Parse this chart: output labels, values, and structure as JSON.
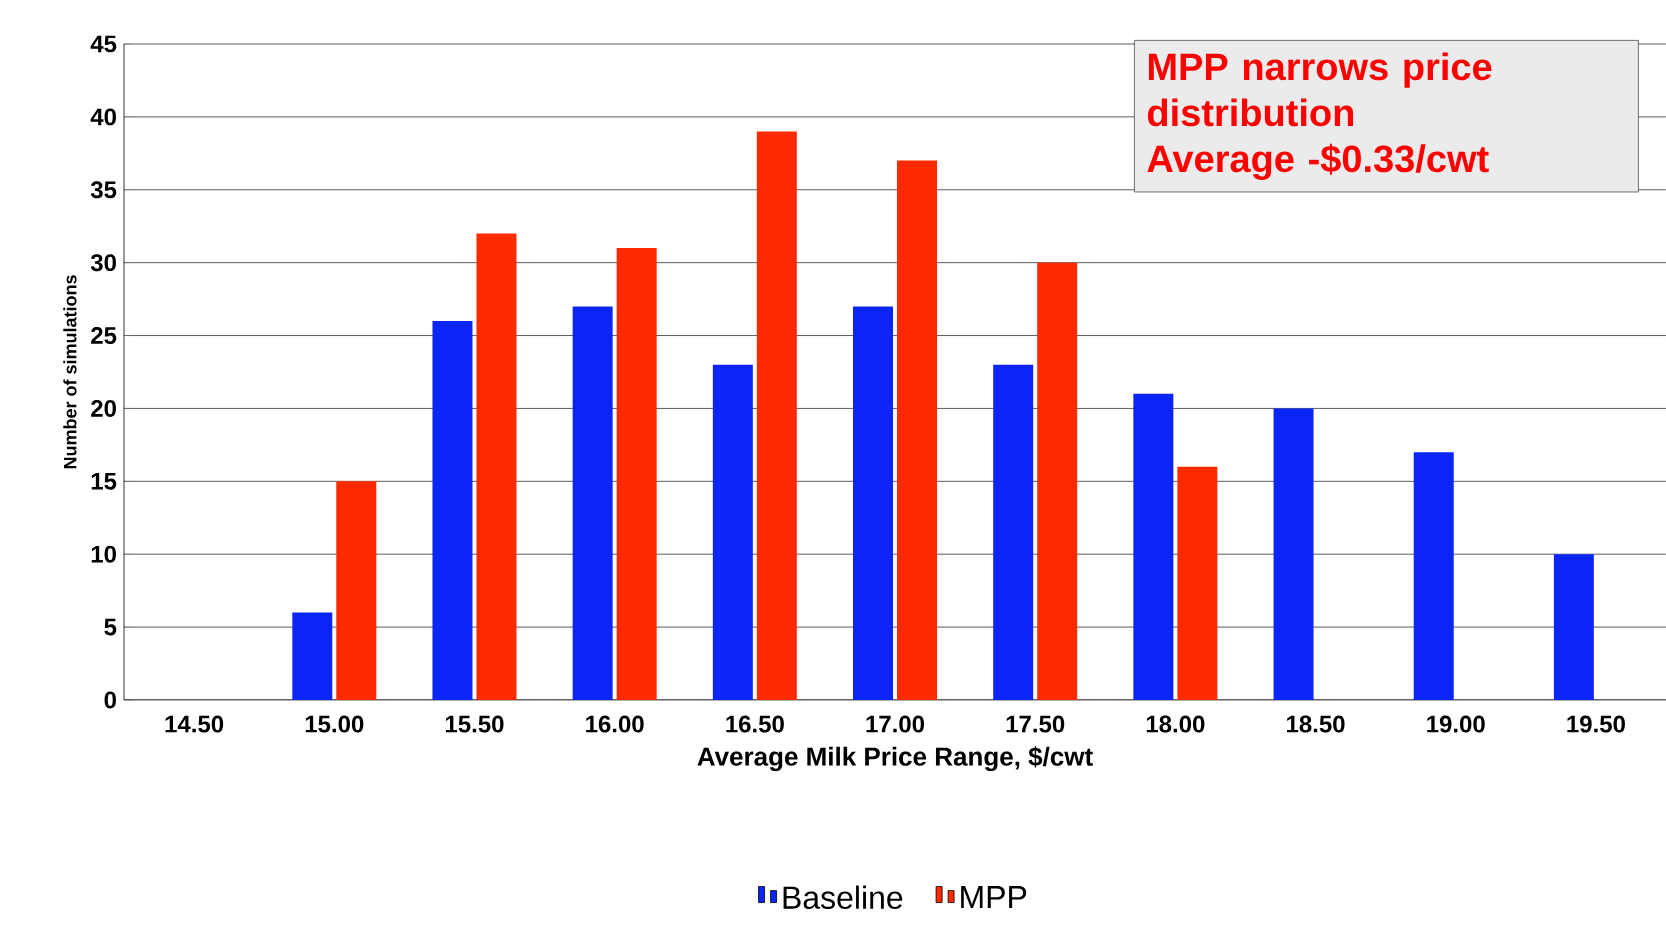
{
  "chart_data": {
    "type": "bar",
    "xlabel": "Average Milk Price Range, $/cwt",
    "ylabel": "Number of simulations",
    "categories": [
      "14.50",
      "15.00",
      "15.50",
      "16.00",
      "16.50",
      "17.00",
      "17.50",
      "18.00",
      "18.50",
      "19.00",
      "19.50"
    ],
    "series": [
      {
        "name": "Baseline",
        "color": "#0a25f5",
        "values": [
          null,
          6,
          26,
          27,
          23,
          27,
          23,
          21,
          20,
          17,
          10
        ]
      },
      {
        "name": "MPP",
        "color": "#ff2a00",
        "values": [
          null,
          15,
          32,
          31,
          39,
          37,
          30,
          16,
          null,
          null,
          null
        ]
      }
    ],
    "ylim": [
      0,
      45
    ],
    "yticks": [
      0,
      5,
      10,
      15,
      20,
      25,
      30,
      35,
      40,
      45
    ],
    "grid": "y",
    "legend": "bottom",
    "annotations": [
      "MPP narrows price distribution",
      "Average -$0.33/cwt"
    ]
  }
}
